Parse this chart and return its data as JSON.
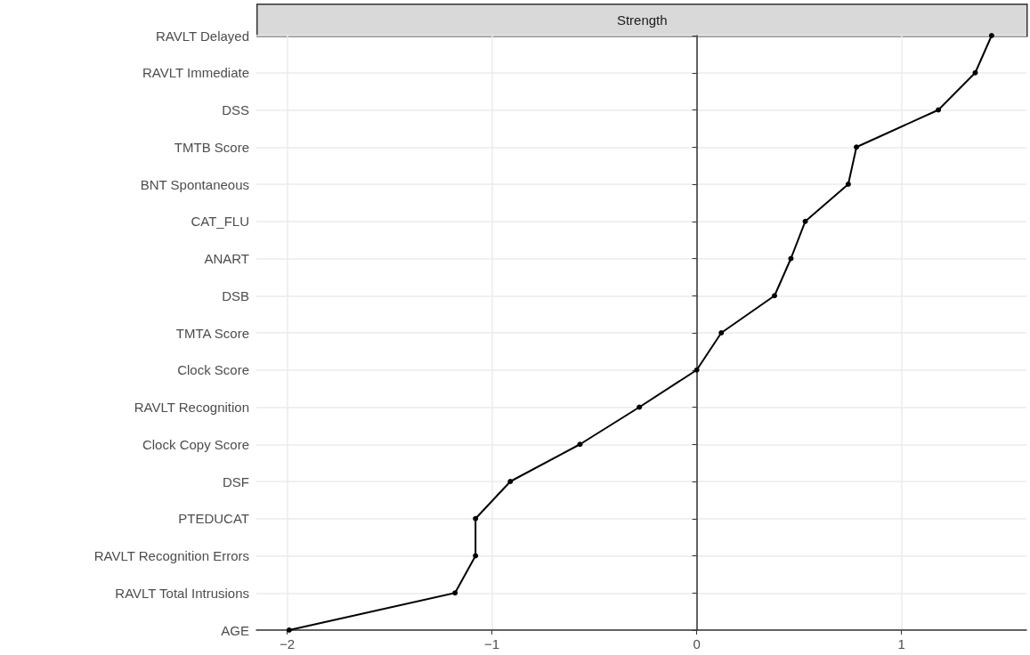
{
  "chart_data": {
    "type": "line",
    "orientation": "horizontal",
    "title": "Strength",
    "categories": [
      "RAVLT Delayed",
      "RAVLT Immediate",
      "DSS",
      "TMTB Score",
      "BNT Spontaneous",
      "CAT_FLU",
      "ANART",
      "DSB",
      "TMTA Score",
      "Clock Score",
      "RAVLT Recognition",
      "Clock Copy Score",
      "DSF",
      "PTEDUCAT",
      "RAVLT Recognition Errors",
      "RAVLT Total Intrusions",
      "AGE"
    ],
    "series": [
      {
        "color": "#000000",
        "values": [
          1.44,
          1.36,
          1.18,
          0.78,
          0.74,
          0.53,
          0.46,
          0.38,
          0.12,
          0.0,
          -0.28,
          -0.57,
          -0.91,
          -1.08,
          -1.08,
          -1.18,
          -1.99
        ]
      }
    ],
    "xlim": [
      -2.15,
      1.61
    ],
    "xticks": [
      {
        "value": -2,
        "label": "−2"
      },
      {
        "value": -1,
        "label": "−1"
      },
      0,
      1
    ],
    "grid": true,
    "marker": "circle",
    "line_style": "solid"
  }
}
